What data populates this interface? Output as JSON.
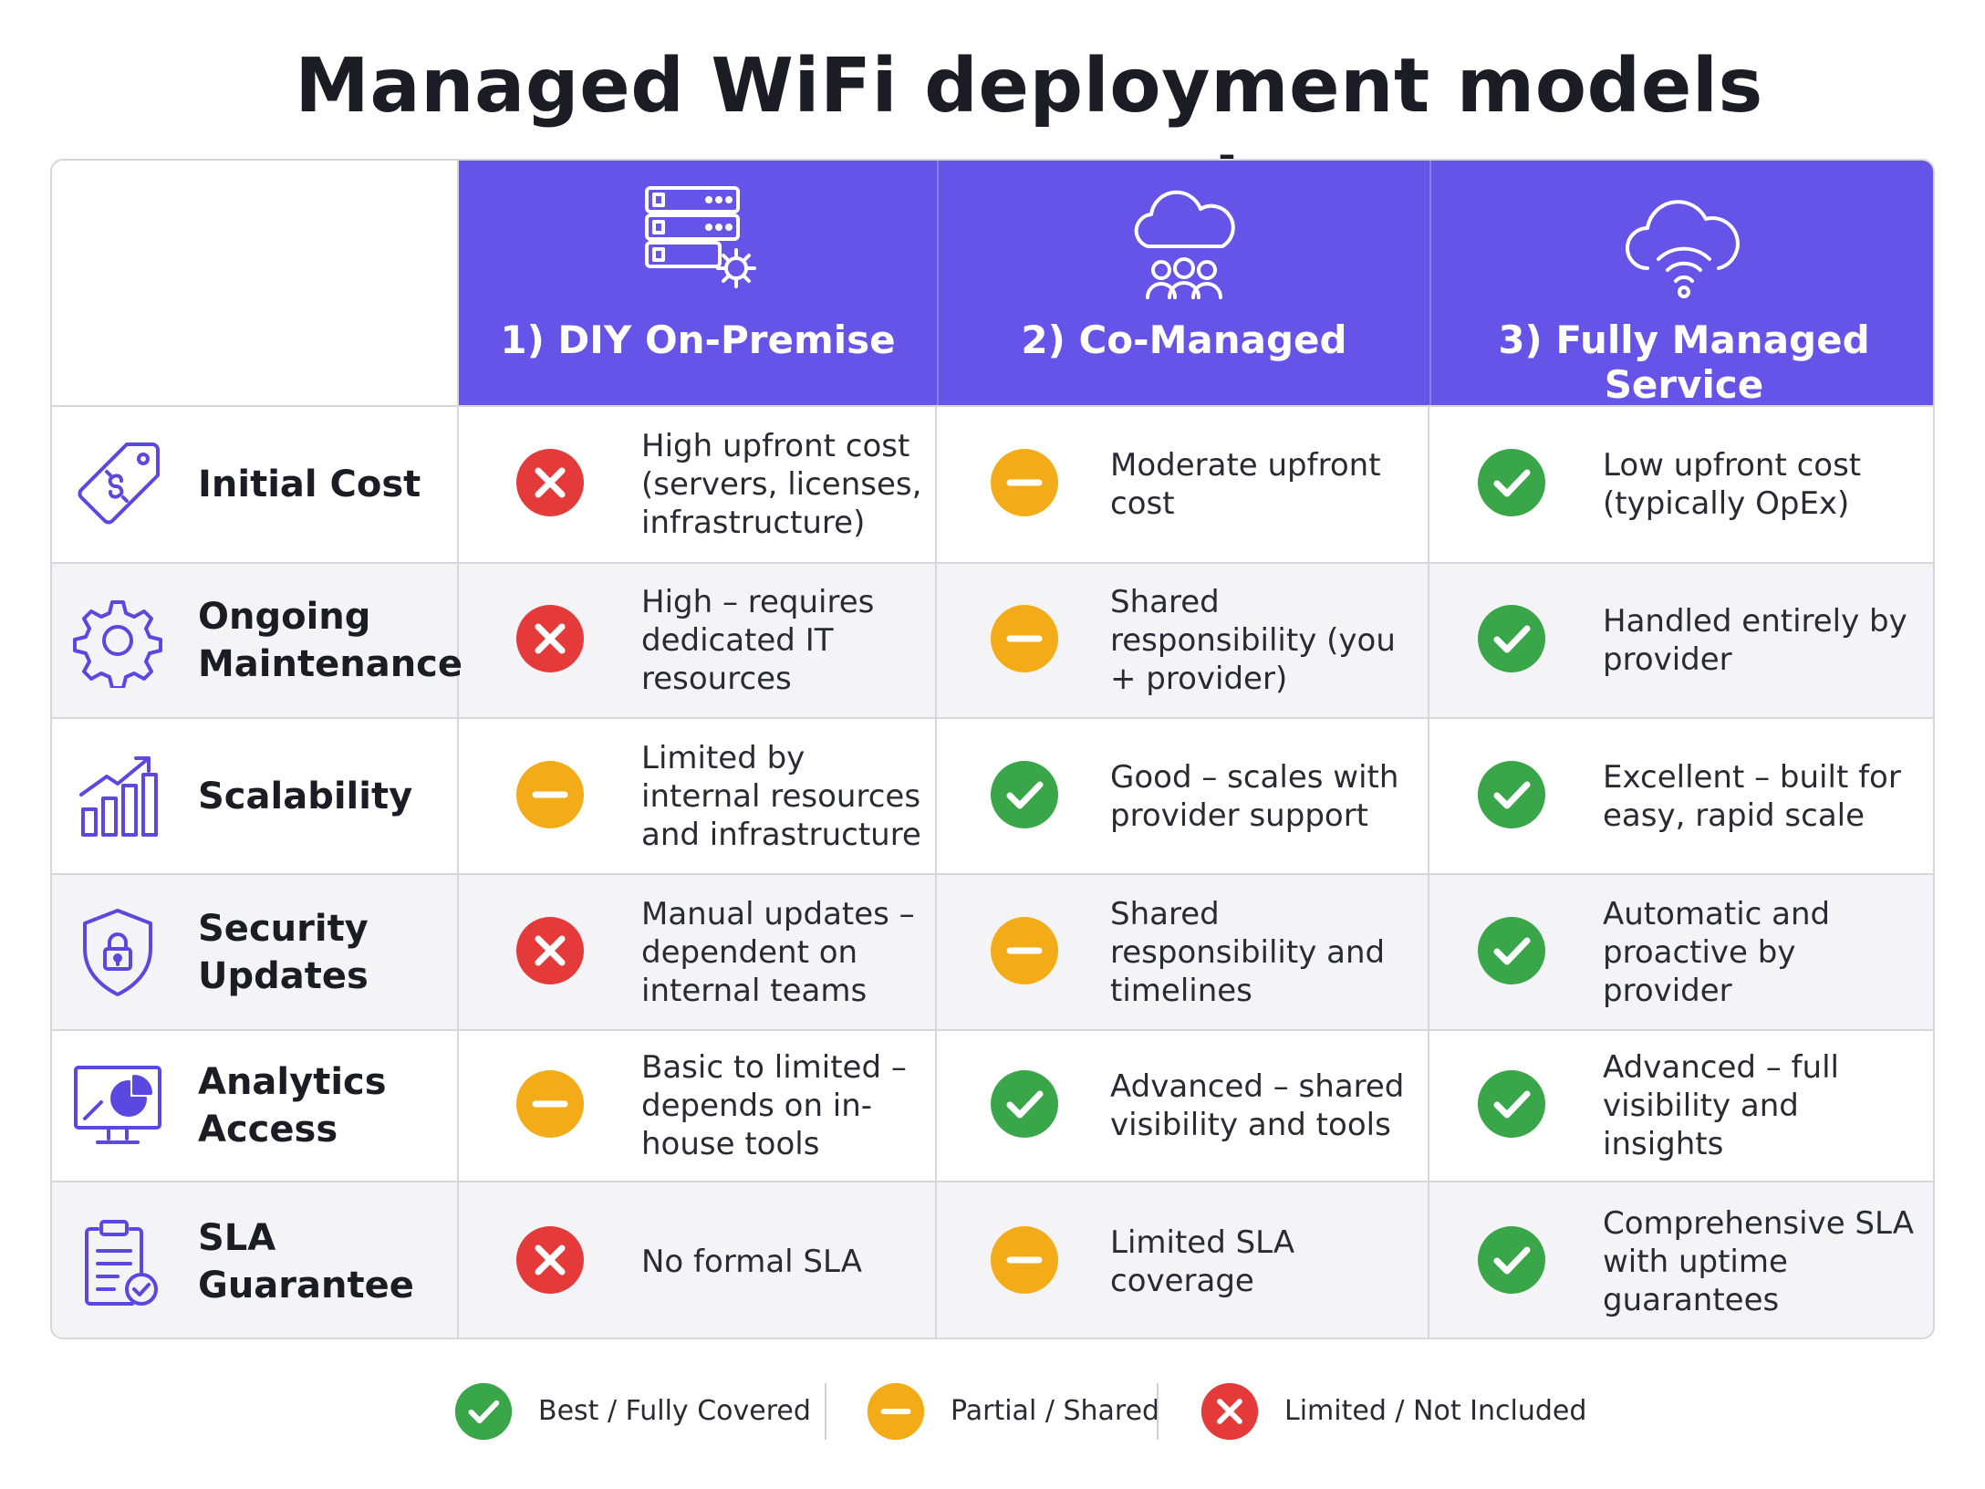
{
  "title": "Managed WiFi deployment models compared",
  "colors": {
    "header_bg": "#6653e8",
    "icon_stroke": "#5b48e0",
    "best": "#3aa64a",
    "partial": "#f3ac18",
    "limited": "#e53a3a",
    "row_alt": "#f4f4f6"
  },
  "columns": [
    {
      "label": "1) DIY On-Premise",
      "icon": "server-gear-icon"
    },
    {
      "label": "2) Co-Managed",
      "icon": "cloud-people-icon"
    },
    {
      "label": "3) Fully Managed Service",
      "icon": "cloud-wifi-icon"
    }
  ],
  "rows": [
    {
      "label": "Initial Cost",
      "icon": "price-tag-icon",
      "cells": [
        {
          "status": "limited",
          "text": "High upfront cost (servers, licenses, infrastructure)"
        },
        {
          "status": "partial",
          "text": "Moderate upfront cost"
        },
        {
          "status": "best",
          "text": "Low upfront cost (typically OpEx)"
        }
      ]
    },
    {
      "label": "Ongoing Maintenance",
      "icon": "gear-icon",
      "cells": [
        {
          "status": "limited",
          "text": "High – requires dedicated IT resources"
        },
        {
          "status": "partial",
          "text": "Shared responsibility (you + provider)"
        },
        {
          "status": "best",
          "text": "Handled entirely by provider"
        }
      ]
    },
    {
      "label": "Scalability",
      "icon": "growth-chart-icon",
      "cells": [
        {
          "status": "partial",
          "text": "Limited by internal resources and infrastructure"
        },
        {
          "status": "best",
          "text": "Good – scales with provider support"
        },
        {
          "status": "best",
          "text": "Excellent – built for easy, rapid scale"
        }
      ]
    },
    {
      "label": "Security Updates",
      "icon": "shield-lock-icon",
      "cells": [
        {
          "status": "limited",
          "text": "Manual updates – dependent on internal teams"
        },
        {
          "status": "partial",
          "text": "Shared responsibility and timelines"
        },
        {
          "status": "best",
          "text": "Automatic and proactive by provider"
        }
      ]
    },
    {
      "label": "Analytics Access",
      "icon": "monitor-chart-icon",
      "cells": [
        {
          "status": "partial",
          "text": "Basic to limited – depends on in-house tools"
        },
        {
          "status": "best",
          "text": "Advanced – shared visibility and tools"
        },
        {
          "status": "best",
          "text": "Advanced – full visibility and insights"
        }
      ]
    },
    {
      "label": "SLA Guarantee",
      "icon": "clipboard-check-icon",
      "cells": [
        {
          "status": "limited",
          "text": "No formal SLA"
        },
        {
          "status": "partial",
          "text": "Limited SLA coverage"
        },
        {
          "status": "best",
          "text": "Comprehensive SLA with uptime guarantees"
        }
      ]
    }
  ],
  "legend": [
    {
      "status": "best",
      "label": "Best / Fully Covered"
    },
    {
      "status": "partial",
      "label": "Partial / Shared"
    },
    {
      "status": "limited",
      "label": "Limited / Not Included"
    }
  ]
}
